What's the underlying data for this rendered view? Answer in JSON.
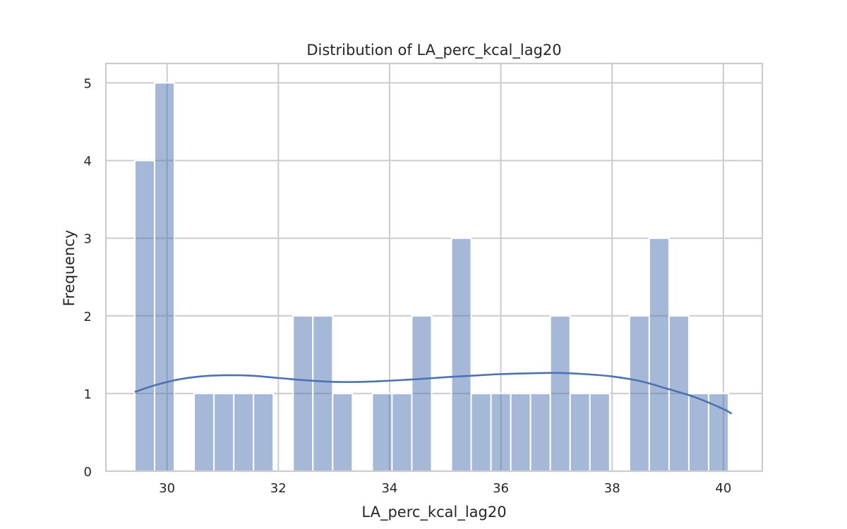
{
  "chart_data": {
    "type": "bar",
    "title": "Distribution of LA_perc_kcal_lag20",
    "xlabel": "LA_perc_kcal_lag20",
    "ylabel": "Frequency",
    "xlim": [
      28.9,
      40.7
    ],
    "ylim": [
      0,
      5.25
    ],
    "xticks": [
      30,
      32,
      34,
      36,
      38,
      40
    ],
    "yticks": [
      0,
      1,
      2,
      3,
      4,
      5
    ],
    "grid": true,
    "bin_start": 29.42,
    "bin_width": 0.3557,
    "bin_counts": [
      4,
      5,
      0,
      1,
      1,
      1,
      1,
      0,
      2,
      2,
      1,
      0,
      1,
      1,
      2,
      0,
      3,
      1,
      1,
      1,
      1,
      2,
      1,
      1,
      0,
      2,
      3,
      2,
      1,
      1
    ],
    "kde_x": [
      29.42,
      29.8,
      30.2,
      30.6,
      31.0,
      31.5,
      32.0,
      32.5,
      33.0,
      33.5,
      34.0,
      34.5,
      35.0,
      35.5,
      36.0,
      36.5,
      37.0,
      37.5,
      38.0,
      38.5,
      39.0,
      39.5,
      40.0,
      40.15
    ],
    "kde_y": [
      1.02,
      1.11,
      1.18,
      1.22,
      1.235,
      1.23,
      1.2,
      1.17,
      1.15,
      1.15,
      1.165,
      1.185,
      1.21,
      1.23,
      1.25,
      1.26,
      1.265,
      1.25,
      1.22,
      1.16,
      1.06,
      0.95,
      0.8,
      0.74
    ]
  }
}
